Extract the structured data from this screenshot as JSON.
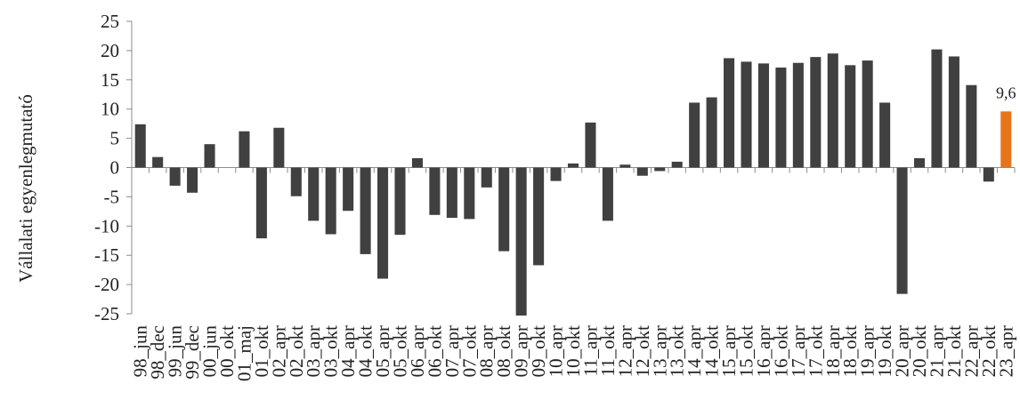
{
  "chart_data": {
    "type": "bar",
    "ylabel": "Vállalati egyenlegmutató",
    "ylim": [
      -25,
      25
    ],
    "y_ticks": [
      25,
      20,
      15,
      10,
      5,
      0,
      -5,
      -10,
      -15,
      -20,
      -25
    ],
    "grid": false,
    "categories": [
      "98_jun",
      "98_dec",
      "99_jun",
      "99_dec",
      "00_jun",
      "00_okt",
      "01_maj",
      "01_okt",
      "02_apr",
      "02_okt",
      "03_apr",
      "03_okt",
      "04_apr",
      "04_okt",
      "05_apr",
      "05_okt",
      "06_apr",
      "06_okt",
      "07_apr",
      "07_okt",
      "08_apr",
      "08_okt",
      "09_apr",
      "09_okt",
      "10_apr",
      "10_okt",
      "11_apr",
      "11_okt",
      "12_apr",
      "12_okt",
      "13_apr",
      "13_okt",
      "14_apr",
      "14_okt",
      "15_apr",
      "15_okt",
      "16_apr",
      "16_okt",
      "17_apr",
      "17_okt",
      "18_apr",
      "18_okt",
      "19_apr",
      "19_okt",
      "20_apr",
      "20_okt",
      "21_apr",
      "21_okt",
      "22_apr",
      "22_okt",
      "23_apr"
    ],
    "values": [
      7.4,
      1.8,
      -3.1,
      -4.3,
      4.0,
      0,
      6.2,
      -12.1,
      6.8,
      -4.9,
      -9.1,
      -11.4,
      -7.4,
      -14.8,
      -19.0,
      -11.5,
      1.6,
      -8.1,
      -8.6,
      -8.8,
      -3.4,
      -14.3,
      -25.3,
      -16.7,
      -2.3,
      0.7,
      7.7,
      -9.1,
      0.5,
      -1.4,
      -0.6,
      1.0,
      11.1,
      12.0,
      18.7,
      18.1,
      17.8,
      17.1,
      17.9,
      18.9,
      19.5,
      17.5,
      18.3,
      11.1,
      -21.6,
      1.6,
      20.2,
      19.0,
      14.1,
      -2.4,
      9.6
    ],
    "highlight_color": "#e6741a",
    "bar_color": "#404040",
    "annotation": "9,6"
  }
}
